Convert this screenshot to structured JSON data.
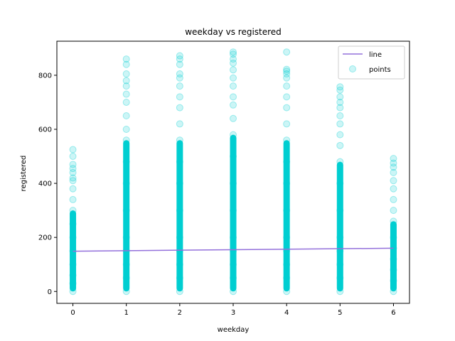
{
  "chart_data": {
    "type": "scatter",
    "title": "weekday vs registered",
    "xlabel": "weekday",
    "ylabel": "registered",
    "xlim": [
      -0.3,
      6.3
    ],
    "ylim": [
      -44,
      926
    ],
    "xticks": [
      0,
      1,
      2,
      3,
      4,
      5,
      6
    ],
    "yticks": [
      0,
      200,
      400,
      600,
      800
    ],
    "grid": false,
    "legend_position": "top-right",
    "colors": {
      "line": "#9370db",
      "points": "#00ced1"
    },
    "series": [
      {
        "name": "line",
        "kind": "line",
        "x": [
          0,
          6
        ],
        "y": [
          149,
          160
        ]
      },
      {
        "name": "points",
        "kind": "scatter",
        "x": [
          0,
          0,
          0,
          0,
          0,
          0,
          0,
          0,
          0,
          0,
          0,
          0,
          0,
          0,
          0,
          0,
          0,
          1,
          1,
          1,
          1,
          1,
          1,
          1,
          1,
          1,
          1,
          1,
          1,
          1,
          1,
          1,
          1,
          1,
          1,
          2,
          2,
          2,
          2,
          2,
          2,
          2,
          2,
          2,
          2,
          2,
          2,
          2,
          2,
          2,
          2,
          2,
          2,
          3,
          3,
          3,
          3,
          3,
          3,
          3,
          3,
          3,
          3,
          3,
          3,
          3,
          3,
          3,
          3,
          3,
          3,
          3,
          4,
          4,
          4,
          4,
          4,
          4,
          4,
          4,
          4,
          4,
          4,
          4,
          4,
          4,
          4,
          4,
          4,
          4,
          5,
          5,
          5,
          5,
          5,
          5,
          5,
          5,
          5,
          5,
          5,
          5,
          5,
          5,
          5,
          5,
          5,
          6,
          6,
          6,
          6,
          6,
          6,
          6,
          6,
          6,
          6,
          6,
          6,
          6,
          6,
          6
        ],
        "y": [
          0,
          30,
          60,
          100,
          150,
          200,
          250,
          300,
          340,
          380,
          410,
          420,
          440,
          455,
          470,
          500,
          525,
          0,
          50,
          100,
          150,
          200,
          300,
          400,
          480,
          560,
          600,
          650,
          700,
          730,
          760,
          780,
          805,
          840,
          860,
          0,
          50,
          100,
          150,
          200,
          300,
          400,
          480,
          560,
          620,
          680,
          720,
          760,
          790,
          805,
          840,
          860,
          872,
          0,
          50,
          100,
          150,
          200,
          300,
          400,
          500,
          580,
          640,
          690,
          720,
          760,
          790,
          820,
          845,
          860,
          878,
          886,
          0,
          50,
          100,
          150,
          200,
          300,
          400,
          480,
          560,
          620,
          680,
          720,
          760,
          790,
          805,
          815,
          822,
          886,
          0,
          50,
          100,
          150,
          200,
          300,
          400,
          480,
          540,
          580,
          620,
          650,
          680,
          700,
          720,
          745,
          757,
          0,
          40,
          80,
          120,
          160,
          200,
          260,
          300,
          340,
          380,
          410,
          440,
          460,
          475,
          492
        ]
      }
    ]
  }
}
